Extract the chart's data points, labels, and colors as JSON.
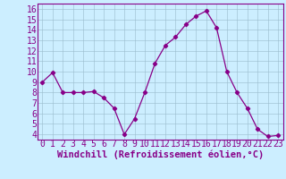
{
  "x": [
    0,
    1,
    2,
    3,
    4,
    5,
    6,
    7,
    8,
    9,
    10,
    11,
    12,
    13,
    14,
    15,
    16,
    17,
    18,
    19,
    20,
    21,
    22,
    23
  ],
  "y": [
    9.0,
    9.9,
    8.0,
    8.0,
    8.0,
    8.1,
    7.5,
    6.5,
    4.0,
    5.5,
    8.0,
    10.8,
    12.5,
    13.3,
    14.5,
    15.3,
    15.8,
    14.2,
    10.0,
    8.0,
    6.5,
    4.5,
    3.8,
    3.9
  ],
  "line_color": "#880088",
  "marker": "D",
  "marker_size": 2.2,
  "bg_color": "#cceeff",
  "grid_color": "#99bbcc",
  "xlabel": "Windchill (Refroidissement éolien,°C)",
  "xlabel_color": "#880088",
  "tick_color": "#880088",
  "ylim": [
    3.5,
    16.5
  ],
  "xlim": [
    -0.5,
    23.5
  ],
  "yticks": [
    4,
    5,
    6,
    7,
    8,
    9,
    10,
    11,
    12,
    13,
    14,
    15,
    16
  ],
  "xticks": [
    0,
    1,
    2,
    3,
    4,
    5,
    6,
    7,
    8,
    9,
    10,
    11,
    12,
    13,
    14,
    15,
    16,
    17,
    18,
    19,
    20,
    21,
    22,
    23
  ],
  "spine_color": "#880088",
  "tick_fontsize": 7.0,
  "xlabel_fontsize": 7.5
}
